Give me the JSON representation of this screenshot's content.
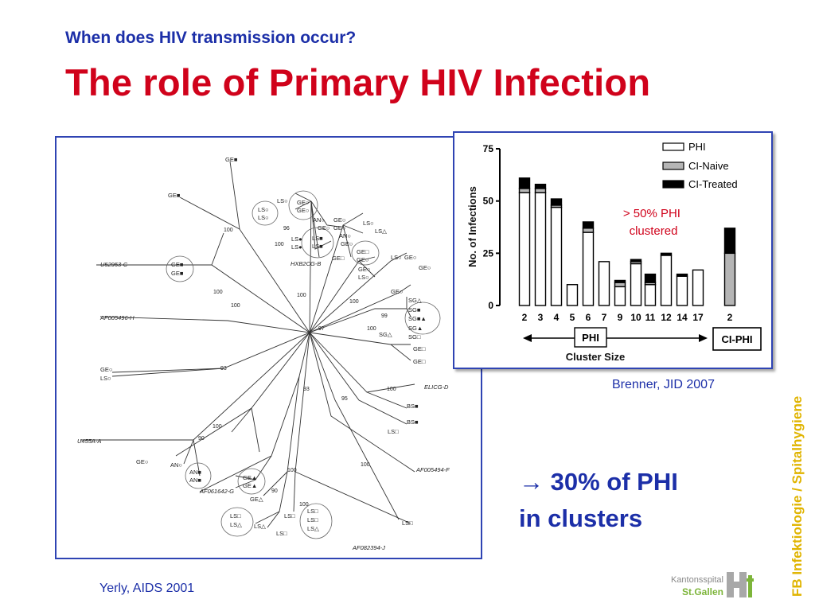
{
  "slide": {
    "subtitle": "When does HIV transmission occur?",
    "title": "The role of Primary HIV Infection",
    "chart_source": "Brenner, JID 2007",
    "tree_source": "Yerly, AIDS 2001",
    "stat_line1": "30% of PHI",
    "stat_line2": "in clusters",
    "stat_arrow": "→",
    "side_label": "FB Infektiologie / Spitalhygiene",
    "logo_line1": "Kantonsspital",
    "logo_line2": "St.Gallen"
  },
  "colors": {
    "title": "#d0021b",
    "subtitle": "#1c2fa8",
    "panel_border": "#2f44b3",
    "side_label": "#e0b400",
    "annotation": "#d0021b"
  },
  "tree": {
    "references": [
      "U52953-C",
      "AF005496-H",
      "U455A-A",
      "AF061642-G",
      "HXB2CG-B",
      "ELICG-D",
      "AF005494-F",
      "AF082394-J"
    ],
    "bootstrap": [
      "100",
      "100",
      "100",
      "96",
      "100",
      "93",
      "93",
      "95",
      "97",
      "90",
      "90",
      "99",
      "100",
      "100",
      "100",
      "100",
      "100",
      "100",
      "100",
      "100"
    ],
    "tip_labels": [
      "GE■",
      "GE■",
      "GE■",
      "GE■",
      "LS○",
      "LS○",
      "LS○",
      "GE○",
      "GE○",
      "AN○",
      "GE○",
      "GE○",
      "LS○",
      "LS△",
      "GE○",
      "LS●",
      "LS●",
      "LS■",
      "LS■",
      "AN○",
      "GE○",
      "GE□",
      "GE○",
      "GE□",
      "GE○",
      "GE○",
      "LS○",
      "LS○",
      "GE○",
      "GE○",
      "SG△",
      "SG■",
      "SG■▲",
      "SG▲",
      "SG□",
      "SG△",
      "GE□",
      "GE□",
      "GE○",
      "LS○",
      "BS■",
      "BS■",
      "LS□",
      "GE○",
      "AN○",
      "AN■",
      "AN■",
      "GE▲",
      "GE▲",
      "GE△",
      "LS□",
      "LS□",
      "LS□",
      "LS□",
      "LS△",
      "LS△",
      "LS△",
      "LS□",
      "LS□"
    ]
  },
  "chart_data": {
    "type": "bar",
    "stacked": true,
    "categories": [
      "2",
      "3",
      "4",
      "5",
      "6",
      "7",
      "9",
      "10",
      "11",
      "12",
      "14",
      "17",
      "2"
    ],
    "group_labels": [
      "PHI",
      "CI-PHI"
    ],
    "xlabel": "Cluster Size",
    "ylabel": "No. of Infections",
    "yticks": [
      0,
      25,
      50,
      75
    ],
    "ylim": [
      0,
      75
    ],
    "legend_position": "top-right",
    "annotation": "> 50% PHI clustered",
    "series": [
      {
        "name": "PHI",
        "color": "#ffffff",
        "values": [
          54,
          54,
          47,
          10,
          35,
          21,
          9,
          20,
          10,
          24,
          14,
          17,
          0
        ]
      },
      {
        "name": "CI-Naive",
        "color": "#b5b5b5",
        "values": [
          2,
          2,
          1,
          0,
          2,
          0,
          2,
          1,
          1,
          0,
          0,
          0,
          25
        ]
      },
      {
        "name": "CI-Treated",
        "color": "#000000",
        "values": [
          5,
          2,
          3,
          0,
          3,
          0,
          1,
          1,
          4,
          1,
          1,
          0,
          12
        ]
      }
    ]
  }
}
